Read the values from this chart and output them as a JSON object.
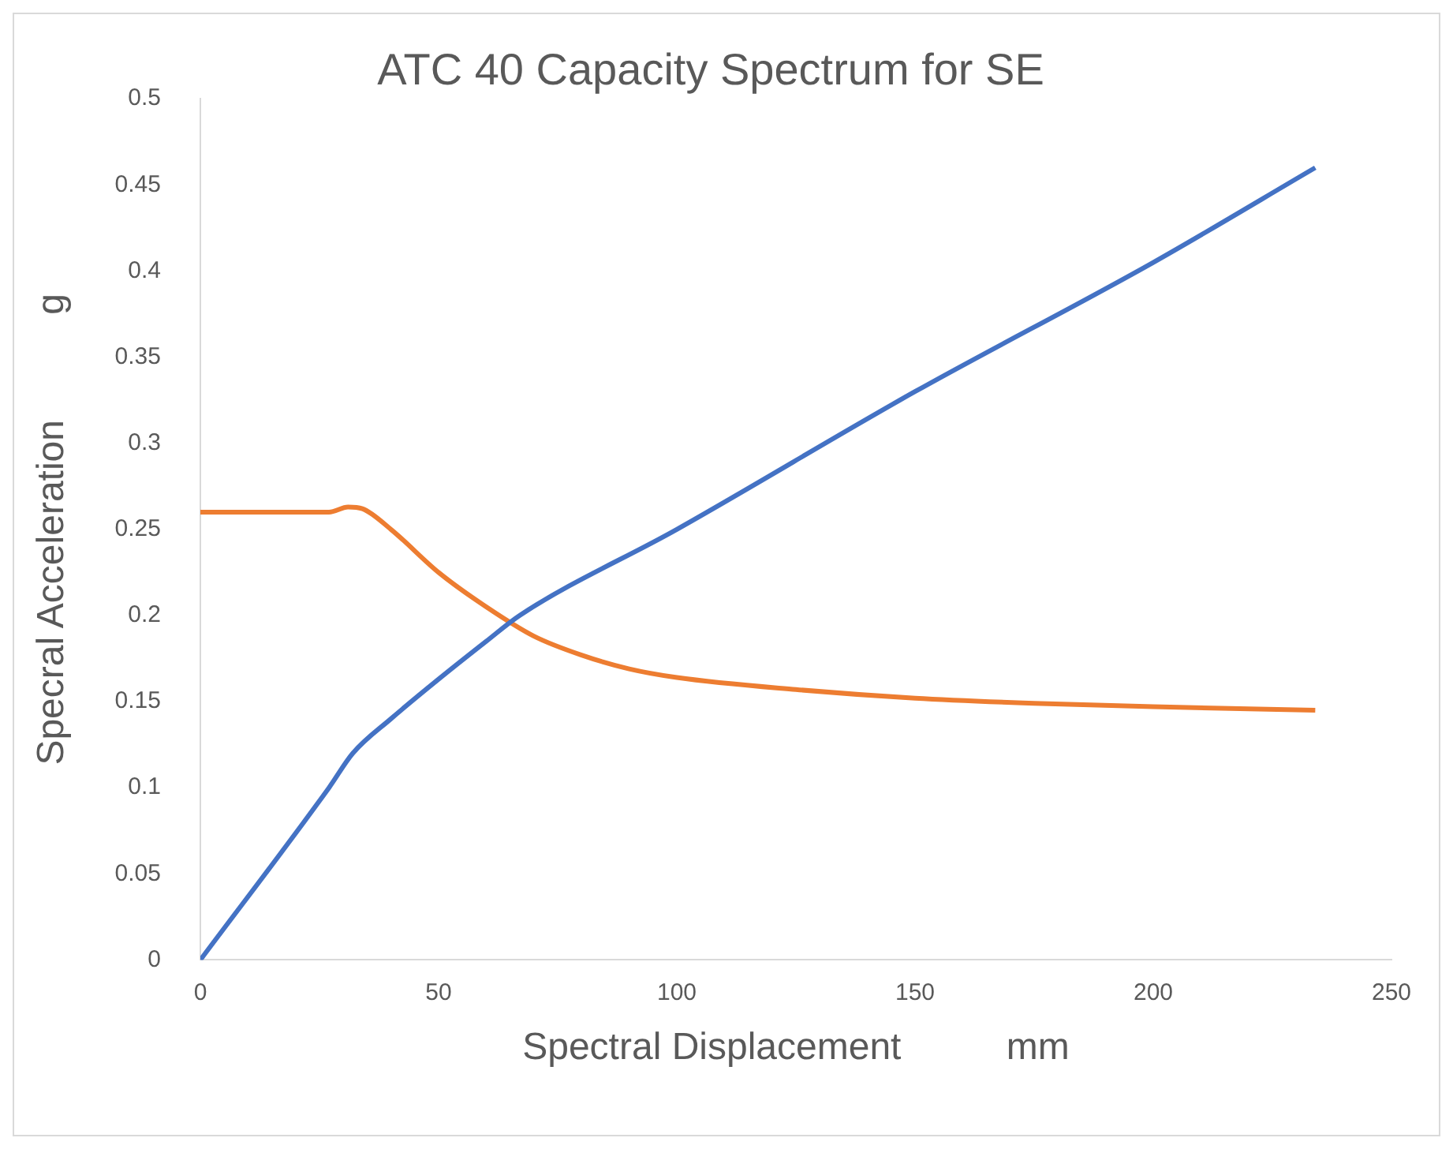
{
  "chart_data": {
    "type": "line",
    "title": "ATC 40 Capacity Spectrum for SE",
    "xlabel": "Spectral Displacement          mm",
    "ylabel": "Specral Acceleration          g",
    "xlim": [
      0,
      250
    ],
    "xticks": [
      0,
      50,
      100,
      150,
      200,
      250
    ],
    "ylim": [
      0,
      0.5
    ],
    "yticks": [
      0,
      0.05,
      0.1,
      0.15,
      0.2,
      0.25,
      0.3,
      0.35,
      0.4,
      0.45,
      0.5
    ],
    "grid": false,
    "legend": false,
    "series": [
      {
        "color": "#4472c4",
        "x": [
          0,
          27,
          32,
          40,
          50,
          60,
          67,
          100,
          150,
          200,
          234
        ],
        "values": [
          0,
          0.1,
          0.12,
          0.14,
          0.163,
          0.185,
          0.2,
          0.25,
          0.33,
          0.405,
          0.46
        ]
      },
      {
        "color": "#ed7d31",
        "x": [
          0,
          27,
          31,
          34,
          40,
          50,
          60,
          70,
          80,
          90,
          100,
          125,
          150,
          175,
          200,
          234
        ],
        "values": [
          0.26,
          0.26,
          0.263,
          0.262,
          0.25,
          0.225,
          0.205,
          0.188,
          0.177,
          0.169,
          0.164,
          0.157,
          0.152,
          0.149,
          0.147,
          0.145
        ]
      }
    ]
  }
}
